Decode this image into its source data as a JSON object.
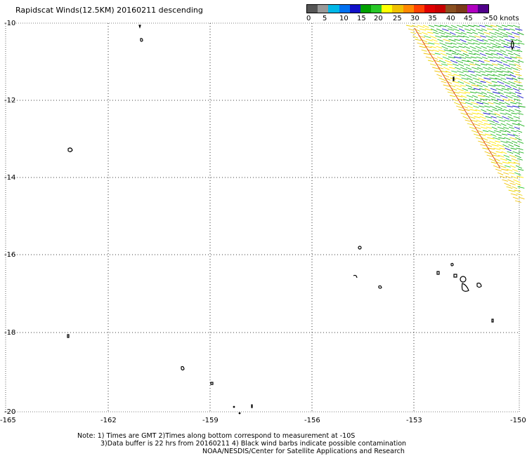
{
  "title": "Rapidscat Winds(12.5KM) 20160211 descending",
  "colorbar": {
    "labels": [
      "0",
      "5",
      "10",
      "15",
      "20",
      "25",
      "30",
      "35",
      "40",
      "45",
      ">50 knots"
    ],
    "colors": [
      "#555555",
      "#999999",
      "#00b8e8",
      "#0070f0",
      "#1010c8",
      "#00a000",
      "#28c828",
      "#ffff00",
      "#f0c000",
      "#ff8800",
      "#ff4000",
      "#e00000",
      "#c80000",
      "#8a5020",
      "#7a3a18",
      "#b000c0",
      "#50008a"
    ]
  },
  "map": {
    "lat_labels": [
      "-10",
      "-12",
      "-14",
      "-16",
      "-18",
      "-20"
    ],
    "lon_labels": [
      "-165",
      "-162",
      "-159",
      "-156",
      "-153",
      "-150"
    ],
    "lon_range": [
      -165,
      -150
    ],
    "lat_range": [
      -20,
      -10
    ],
    "grid": "dotted"
  },
  "notes": [
    "Note: 1) Times are GMT 2)Times along bottom correspond to measurement at -10S",
    "3)Data buffer is 22 hrs from 20160211 4) Black wind barbs indicate possible contamination",
    "NOAA/NESDIS/Center for Satellite Applications and Research"
  ]
}
